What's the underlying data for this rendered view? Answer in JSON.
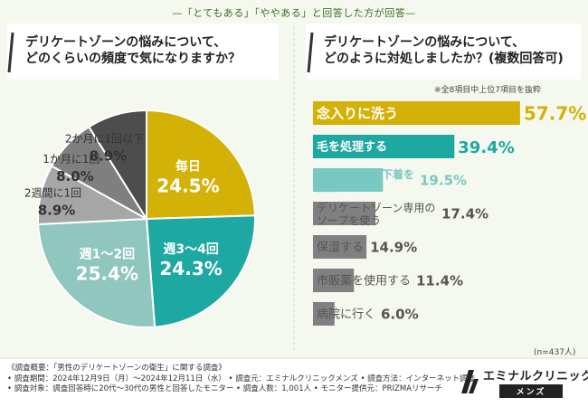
{
  "header_note": "—「とてもある」「ややある」と回答した方が回答—",
  "left_question": "デリケートゾーンの悩みについて、\nどのくらいの頻度で気になりますか？",
  "right_question": "デリケートゾーンの悩みについて、\nどのように対処しましたか？(複数回答可)",
  "right_note": "※全8項目中上位7項目を抜粋",
  "sample_size": "(n=437人)",
  "colors": {
    "gold": "#d4b106",
    "teal": "#1ea8a2",
    "light_teal": "#78c9c4",
    "mint": "#8fc6bd",
    "dark_gray": "#4d4d4d",
    "gray": "#7f7f7f",
    "light_gray": "#a6a6a6",
    "bar_gray": "#808080"
  },
  "chart_data": [
    {
      "type": "pie",
      "title": "デリケートゾーンの悩みについて、どのくらいの頻度で気になりますか？",
      "slices": [
        {
          "label": "毎日",
          "value": 24.5,
          "display": "24.5%"
        },
        {
          "label": "週3〜4回",
          "value": 24.3,
          "display": "24.3%"
        },
        {
          "label": "週1〜2回",
          "value": 25.4,
          "display": "25.4%"
        },
        {
          "label": "2週間に1回",
          "value": 8.9,
          "display": "8.9%"
        },
        {
          "label": "1か月に1回",
          "value": 8.0,
          "display": "8.0%"
        },
        {
          "label": "2か月に1回以下",
          "value": 8.9,
          "display": "8.9%"
        }
      ]
    },
    {
      "type": "bar",
      "title": "デリケートゾーンの悩みについて、どのように対処しましたか？(複数回答可)",
      "categories": [
        "念入りに洗う",
        "毛を処理する",
        "通気性のよい下着を使用する",
        "デリケートゾーン専用のソープを使う",
        "保湿する",
        "市販薬を使用する",
        "病院に行く"
      ],
      "labels": [
        "念入りに洗う",
        "毛を処理する",
        "通気性のよい下着を\n使用する",
        "デリケートゾーン専用の\nソープを使う",
        "保湿する",
        "市販薬を使用する",
        "病院に行く"
      ],
      "values": [
        57.7,
        39.4,
        19.5,
        17.4,
        14.9,
        11.4,
        6.0
      ],
      "display": [
        "57.7%",
        "39.4%",
        "19.5%",
        "17.4%",
        "14.9%",
        "11.4%",
        "6.0%"
      ],
      "xlim": [
        0,
        60
      ]
    }
  ],
  "survey": {
    "line1": "《調査概要：「男性のデリケートゾーンの衛生」に関する調査》",
    "line2": "• 調査期間：2024年12月9日（月）〜2024年12月11日（水）  • 調査元：エミナルクリニックメンズ  • 調査方法：インターネット調査",
    "line3": "• 調査対象：調査回答時に20代〜30代の男性と回答したモニター  • 調査人数：1,001人  • モニター提供元：PRIZMAリサーチ"
  },
  "logo": {
    "name": "エミナルクリニック",
    "sub": "メンズ"
  }
}
